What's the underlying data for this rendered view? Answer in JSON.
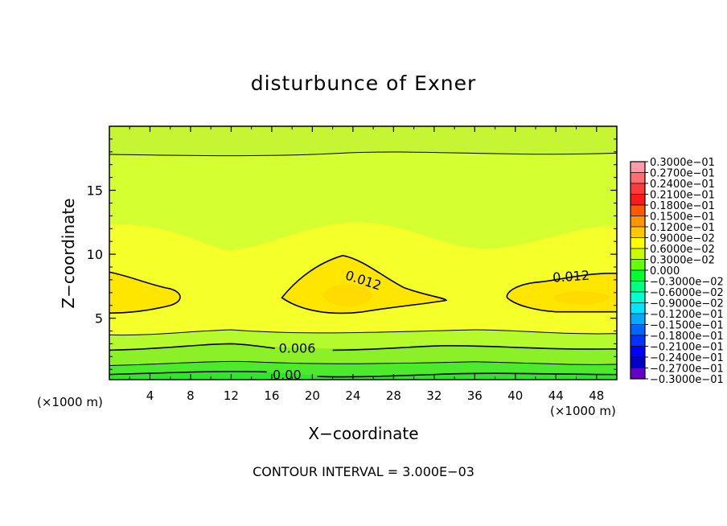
{
  "chart_data": {
    "type": "heatmap",
    "title": "disturbunce of Exner",
    "xlabel": "X−coordinate",
    "ylabel": "Z−coordinate",
    "x_unit_left": "(×1000 m)",
    "x_unit_right": "(×1000 m)",
    "footer": "CONTOUR INTERVAL = 3.000E−03",
    "xlim": [
      0,
      50
    ],
    "ylim": [
      0.2,
      20
    ],
    "x_ticks": [
      4,
      8,
      12,
      16,
      20,
      24,
      28,
      32,
      36,
      40,
      44,
      48
    ],
    "x_tick_labels": [
      "4",
      "8",
      "12",
      "16",
      "20",
      "24",
      "28",
      "32",
      "36",
      "40",
      "44",
      "48"
    ],
    "y_ticks": [
      5,
      10,
      15
    ],
    "y_tick_labels": [
      "5",
      "10",
      "15"
    ],
    "contour_interval": 0.003,
    "contour_labels": [
      {
        "text": "0.012",
        "x": 25,
        "y": 7.9,
        "angle": 18
      },
      {
        "text": "0.012",
        "x": 45.5,
        "y": 8.2,
        "angle": -4
      },
      {
        "text": "0.006",
        "x": 18.5,
        "y": 2.6,
        "angle": 0
      },
      {
        "text": "0.00",
        "x": 17.5,
        "y": 0.5,
        "angle": 0
      }
    ],
    "colorbar": {
      "levels": [
        0.03,
        0.027,
        0.024,
        0.021,
        0.018,
        0.015,
        0.012,
        0.009,
        0.006,
        0.003,
        0.0,
        -0.003,
        -0.006,
        -0.009,
        -0.012,
        -0.015,
        -0.018,
        -0.021,
        -0.024,
        -0.027,
        -0.03
      ],
      "labels": [
        "0.3000e−01",
        "0.2700e−01",
        "0.2400e−01",
        "0.2100e−01",
        "0.1800e−01",
        "0.1500e−01",
        "0.1200e−01",
        "0.9000e−02",
        "0.6000e−02",
        "0.3000e−02",
        "0.000",
        "−0.3000e−02",
        "−0.6000e−02",
        "−0.9000e−02",
        "−0.1200e−01",
        "−0.1500e−01",
        "−0.1800e−01",
        "−0.2100e−01",
        "−0.2400e−01",
        "−0.2700e−01",
        "−0.3000e−01"
      ],
      "colors": [
        "#ff9aa8",
        "#ff6e6e",
        "#ff3a3a",
        "#ff1a1a",
        "#ff5a00",
        "#ff9600",
        "#ffc800",
        "#ffff00",
        "#c8ff00",
        "#64ff00",
        "#00ff32",
        "#00ff82",
        "#00ffd2",
        "#00e6ff",
        "#00aaff",
        "#0064ff",
        "#0032ff",
        "#0000ff",
        "#0000c8",
        "#6400c8"
      ]
    },
    "field_colors": {
      "above_0.012": "#ffe600",
      "0.009_0.012": "#f5ff2a",
      "0.006_0.009": "#d4ff30",
      "0.003_0.006": "#8cf028",
      "0.000_0.003": "#30e628"
    }
  }
}
